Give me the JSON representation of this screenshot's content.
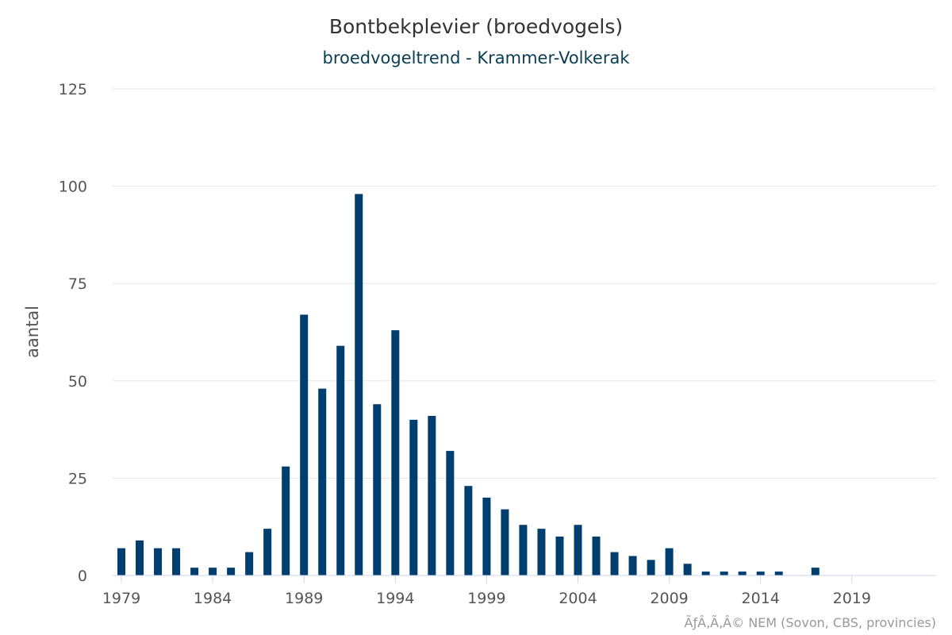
{
  "chart_data": {
    "type": "bar",
    "title": "Bontbekplevier (broedvogels)",
    "subtitle": "broedvogeltrend - Krammer-Volkerak",
    "xlabel": "",
    "ylabel": "aantal",
    "credit": "ÃƒÂ‚Ã‚Â© NEM (Sovon, CBS, provincies)",
    "color": "#003e6f",
    "grid": true,
    "legend": "none",
    "ylim": [
      0,
      125
    ],
    "yticks": [
      0,
      25,
      50,
      75,
      100,
      125
    ],
    "xlim": [
      1979,
      2023
    ],
    "xticks": [
      1979,
      1984,
      1989,
      1994,
      1999,
      2004,
      2009,
      2014,
      2019
    ],
    "x": [
      1979,
      1980,
      1981,
      1982,
      1983,
      1984,
      1985,
      1986,
      1987,
      1988,
      1989,
      1990,
      1991,
      1992,
      1993,
      1994,
      1995,
      1996,
      1997,
      1998,
      1999,
      2000,
      2001,
      2002,
      2003,
      2004,
      2005,
      2006,
      2007,
      2008,
      2009,
      2010,
      2011,
      2012,
      2013,
      2014,
      2015,
      2016,
      2017
    ],
    "values": [
      7,
      9,
      7,
      7,
      2,
      2,
      2,
      6,
      12,
      28,
      67,
      48,
      59,
      98,
      44,
      63,
      40,
      41,
      32,
      23,
      20,
      17,
      13,
      12,
      10,
      13,
      10,
      6,
      5,
      4,
      7,
      3,
      1,
      1,
      1,
      1,
      1,
      0,
      2
    ]
  }
}
